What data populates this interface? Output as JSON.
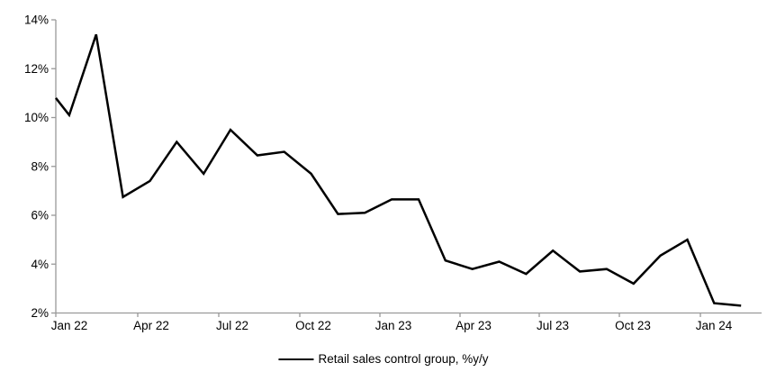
{
  "chart_data": {
    "type": "line",
    "title": "",
    "grid": false,
    "background_color": "#ffffff",
    "legend": {
      "label": "Retail sales control group, %y/y",
      "position": "bottom-center",
      "marker": "black-line-sample"
    },
    "x_axis": {
      "tick_labels": [
        "Jan 22",
        "Apr 22",
        "Jul 22",
        "Oct 22",
        "Jan 23",
        "Apr 23",
        "Jul 23",
        "Oct 23",
        "Jan 24"
      ],
      "tick_interval": "3 months",
      "axis_color": "#999999"
    },
    "y_axis": {
      "tick_labels": [
        "2%",
        "4%",
        "6%",
        "8%",
        "10%",
        "12%",
        "14%"
      ],
      "min": 2,
      "max": 14,
      "step": 2,
      "unit": "%",
      "axis_color": "#999999"
    },
    "series": [
      {
        "name": "Retail sales control group, %y/y",
        "color": "#000000",
        "line_width": 2.5,
        "clipped_lead_in_value_at_axis": 10.8,
        "months": [
          "Jan 22",
          "Feb 22",
          "Mar 22",
          "Apr 22",
          "May 22",
          "Jun 22",
          "Jul 22",
          "Aug 22",
          "Sep 22",
          "Oct 22",
          "Nov 22",
          "Dec 22",
          "Jan 23",
          "Feb 23",
          "Mar 23",
          "Apr 23",
          "May 23",
          "Jun 23",
          "Jul 23",
          "Aug 23",
          "Sep 23",
          "Oct 23",
          "Nov 23",
          "Dec 23",
          "Jan 24",
          "Feb 24"
        ],
        "values": [
          10.1,
          13.4,
          6.75,
          7.4,
          9.0,
          7.7,
          9.5,
          8.45,
          8.6,
          7.7,
          6.05,
          6.1,
          6.65,
          6.65,
          4.15,
          3.8,
          4.1,
          3.6,
          4.55,
          3.7,
          3.8,
          3.2,
          4.35,
          5.0,
          2.4,
          2.3
        ]
      }
    ],
    "text_color": "#000000"
  }
}
